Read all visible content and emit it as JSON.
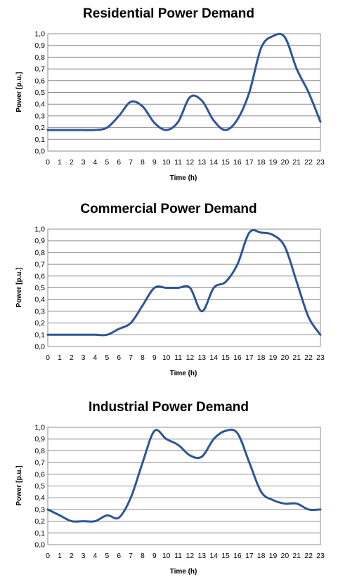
{
  "chart_data": [
    {
      "type": "line",
      "title": "Residential Power Demand",
      "xlabel": "Time (h)",
      "ylabel": "Power [p.u.]",
      "x": [
        0,
        1,
        2,
        3,
        4,
        5,
        6,
        7,
        8,
        9,
        10,
        11,
        12,
        13,
        14,
        15,
        16,
        17,
        18,
        19,
        20,
        21,
        22,
        23
      ],
      "x_tick_labels": [
        "0",
        "1",
        "2",
        "3",
        "4",
        "5",
        "6",
        "7",
        "8",
        "9",
        "10",
        "11",
        "12",
        "13",
        "14",
        "15",
        "16",
        "17",
        "18",
        "19",
        "20",
        "21",
        "22",
        "23"
      ],
      "y_tick_labels": [
        "0,0",
        "0,1",
        "0,2",
        "0,3",
        "0,4",
        "0,5",
        "0,6",
        "0,7",
        "0,8",
        "0,9",
        "1,0"
      ],
      "ylim": [
        0,
        1.0
      ],
      "grid": true,
      "line_color": "#2e5597",
      "series": [
        {
          "values": [
            0.18,
            0.18,
            0.18,
            0.18,
            0.18,
            0.2,
            0.3,
            0.42,
            0.38,
            0.24,
            0.18,
            0.25,
            0.46,
            0.43,
            0.26,
            0.18,
            0.27,
            0.5,
            0.88,
            0.98,
            0.97,
            0.7,
            0.5,
            0.25
          ]
        }
      ]
    },
    {
      "type": "line",
      "title": "Commercial Power Demand",
      "xlabel": "Time (h)",
      "ylabel": "Power [p.u.]",
      "x": [
        0,
        1,
        2,
        3,
        4,
        5,
        6,
        7,
        8,
        9,
        10,
        11,
        12,
        13,
        14,
        15,
        16,
        17,
        18,
        19,
        20,
        21,
        22,
        23
      ],
      "x_tick_labels": [
        "0",
        "1",
        "2",
        "3",
        "4",
        "5",
        "6",
        "7",
        "8",
        "9",
        "10",
        "11",
        "12",
        "13",
        "14",
        "15",
        "16",
        "17",
        "18",
        "19",
        "20",
        "21",
        "22",
        "23"
      ],
      "y_tick_labels": [
        "0,0",
        "0,1",
        "0,2",
        "0,3",
        "0,4",
        "0,5",
        "0,6",
        "0,7",
        "0,8",
        "0,9",
        "1,0"
      ],
      "ylim": [
        0,
        1.0
      ],
      "grid": true,
      "line_color": "#2e5597",
      "series": [
        {
          "values": [
            0.1,
            0.1,
            0.1,
            0.1,
            0.1,
            0.1,
            0.15,
            0.2,
            0.35,
            0.5,
            0.5,
            0.5,
            0.5,
            0.3,
            0.5,
            0.55,
            0.7,
            0.97,
            0.97,
            0.95,
            0.85,
            0.55,
            0.25,
            0.1
          ]
        }
      ]
    },
    {
      "type": "line",
      "title": "Industrial Power Demand",
      "xlabel": "Time (h)",
      "ylabel": "Power [p.u.]",
      "x": [
        0,
        1,
        2,
        3,
        4,
        5,
        6,
        7,
        8,
        9,
        10,
        11,
        12,
        13,
        14,
        15,
        16,
        17,
        18,
        19,
        20,
        21,
        22,
        23
      ],
      "x_tick_labels": [
        "0",
        "1",
        "2",
        "3",
        "4",
        "5",
        "6",
        "7",
        "8",
        "9",
        "10",
        "11",
        "12",
        "13",
        "14",
        "15",
        "16",
        "17",
        "18",
        "19",
        "20",
        "21",
        "22",
        "23"
      ],
      "y_tick_labels": [
        "0,0",
        "0,1",
        "0,2",
        "0,3",
        "0,4",
        "0,5",
        "0,6",
        "0,7",
        "0,8",
        "0,9",
        "1,0"
      ],
      "ylim": [
        0,
        1.0
      ],
      "grid": true,
      "line_color": "#2e5597",
      "series": [
        {
          "values": [
            0.3,
            0.25,
            0.2,
            0.2,
            0.2,
            0.25,
            0.23,
            0.4,
            0.7,
            0.97,
            0.9,
            0.85,
            0.76,
            0.75,
            0.9,
            0.97,
            0.95,
            0.7,
            0.45,
            0.38,
            0.35,
            0.35,
            0.3,
            0.3
          ]
        }
      ]
    }
  ]
}
